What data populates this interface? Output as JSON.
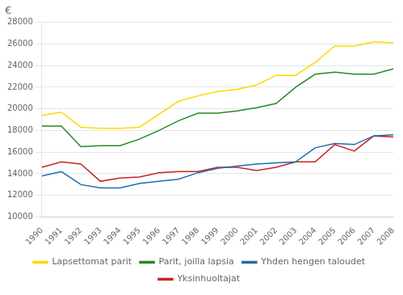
{
  "chart_data": {
    "type": "line",
    "ylabel": "€",
    "x": [
      1990,
      1991,
      1992,
      1993,
      1994,
      1995,
      1996,
      1997,
      1998,
      1999,
      2000,
      2001,
      2002,
      2003,
      2004,
      2005,
      2006,
      2007,
      2008
    ],
    "series": [
      {
        "name": "Lapsettomat parit",
        "color": "#FFD700",
        "values": [
          19400,
          19700,
          18300,
          18200,
          18200,
          18300,
          19500,
          20700,
          21200,
          21600,
          21800,
          22200,
          23100,
          23100,
          24300,
          25800,
          25800,
          26200,
          26100
        ]
      },
      {
        "name": "Parit, joilla lapsia",
        "color": "#228B22",
        "values": [
          18400,
          18400,
          16500,
          16600,
          16600,
          17200,
          18000,
          18900,
          19600,
          19600,
          19800,
          20100,
          20500,
          22000,
          23200,
          23400,
          23200,
          23200,
          23700
        ]
      },
      {
        "name": "Yhden hengen taloudet",
        "color": "#1E6BB0",
        "values": [
          13800,
          14200,
          13000,
          12700,
          12700,
          13100,
          13300,
          13500,
          14100,
          14500,
          14700,
          14900,
          15000,
          15100,
          16400,
          16800,
          16700,
          17500,
          17600
        ]
      },
      {
        "name": "Yksinhuoltajat",
        "color": "#CC2222",
        "values": [
          14600,
          15100,
          14900,
          13300,
          13600,
          13700,
          14100,
          14200,
          14200,
          14600,
          14600,
          14300,
          14600,
          15100,
          15100,
          16700,
          16100,
          17500,
          17400
        ]
      }
    ],
    "xlim": [
      1990,
      2008
    ],
    "xticks": [
      1990,
      1991,
      1992,
      1993,
      1994,
      1995,
      1996,
      1997,
      1998,
      1999,
      2000,
      2001,
      2002,
      2003,
      2004,
      2005,
      2006,
      2007,
      2008
    ],
    "ylim": [
      10000,
      28000
    ],
    "yticks": [
      10000,
      12000,
      14000,
      16000,
      18000,
      20000,
      22000,
      24000,
      26000,
      28000
    ],
    "grid": true,
    "legend": "bottom"
  }
}
